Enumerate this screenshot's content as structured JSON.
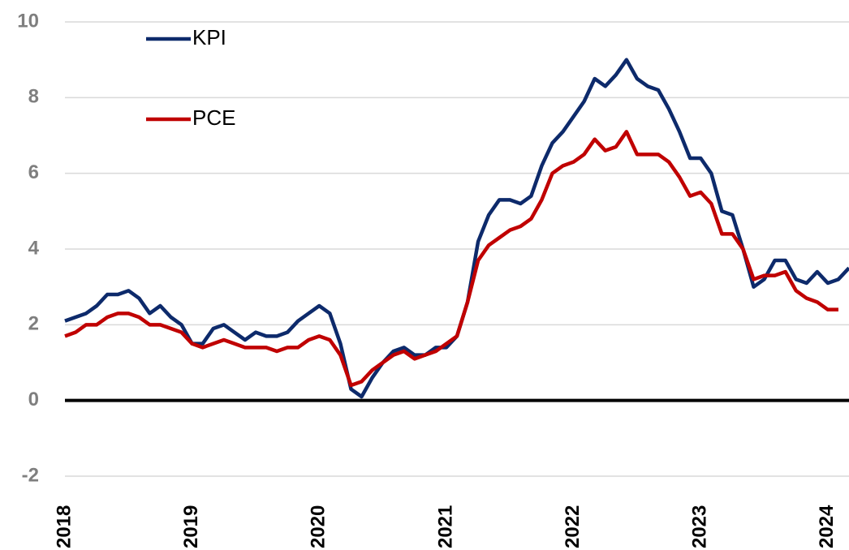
{
  "chart_data": {
    "type": "line",
    "categories": [
      "2018",
      null,
      null,
      null,
      null,
      null,
      null,
      null,
      null,
      null,
      null,
      null,
      "2019",
      null,
      null,
      null,
      null,
      null,
      null,
      null,
      null,
      null,
      null,
      null,
      "2020",
      null,
      null,
      null,
      null,
      null,
      null,
      null,
      null,
      null,
      null,
      null,
      "2021",
      null,
      null,
      null,
      null,
      null,
      null,
      null,
      null,
      null,
      null,
      null,
      "2022",
      null,
      null,
      null,
      null,
      null,
      null,
      null,
      null,
      null,
      null,
      null,
      "2023",
      null,
      null,
      null,
      null,
      null,
      null,
      null,
      null,
      null,
      null,
      null,
      "2024",
      null,
      null
    ],
    "series": [
      {
        "name": "KPI",
        "color": "#0d2a6b",
        "values": [
          2.1,
          2.2,
          2.3,
          2.5,
          2.8,
          2.8,
          2.9,
          2.7,
          2.3,
          2.5,
          2.2,
          2.0,
          1.5,
          1.5,
          1.9,
          2.0,
          1.8,
          1.6,
          1.8,
          1.7,
          1.7,
          1.8,
          2.1,
          2.3,
          2.5,
          2.3,
          1.5,
          0.3,
          0.1,
          0.6,
          1.0,
          1.3,
          1.4,
          1.2,
          1.2,
          1.4,
          1.4,
          1.7,
          2.6,
          4.2,
          4.9,
          5.3,
          5.3,
          5.2,
          5.4,
          6.2,
          6.8,
          7.1,
          7.5,
          7.9,
          8.5,
          8.3,
          8.6,
          9.0,
          8.5,
          8.3,
          8.2,
          7.7,
          7.1,
          6.4,
          6.4,
          6.0,
          5.0,
          4.9,
          4.0,
          3.0,
          3.2,
          3.7,
          3.7,
          3.2,
          3.1,
          3.4,
          3.1,
          3.2,
          3.5
        ]
      },
      {
        "name": "PCE",
        "color": "#c00000",
        "values": [
          1.7,
          1.8,
          2.0,
          2.0,
          2.2,
          2.3,
          2.3,
          2.2,
          2.0,
          2.0,
          1.9,
          1.8,
          1.5,
          1.4,
          1.5,
          1.6,
          1.5,
          1.4,
          1.4,
          1.4,
          1.3,
          1.4,
          1.4,
          1.6,
          1.7,
          1.6,
          1.2,
          0.4,
          0.5,
          0.8,
          1.0,
          1.2,
          1.3,
          1.1,
          1.2,
          1.3,
          1.5,
          1.7,
          2.6,
          3.7,
          4.1,
          4.3,
          4.5,
          4.6,
          4.8,
          5.3,
          6.0,
          6.2,
          6.3,
          6.5,
          6.9,
          6.6,
          6.7,
          7.1,
          6.5,
          6.5,
          6.5,
          6.3,
          5.9,
          5.4,
          5.5,
          5.2,
          4.4,
          4.4,
          4.0,
          3.2,
          3.3,
          3.3,
          3.4,
          2.9,
          2.7,
          2.6,
          2.4,
          2.4,
          null
        ]
      }
    ],
    "ylim": [
      -2,
      10
    ],
    "yticks": [
      -2,
      0,
      2,
      4,
      6,
      8,
      10
    ],
    "grid": true,
    "legend": "upper left"
  }
}
